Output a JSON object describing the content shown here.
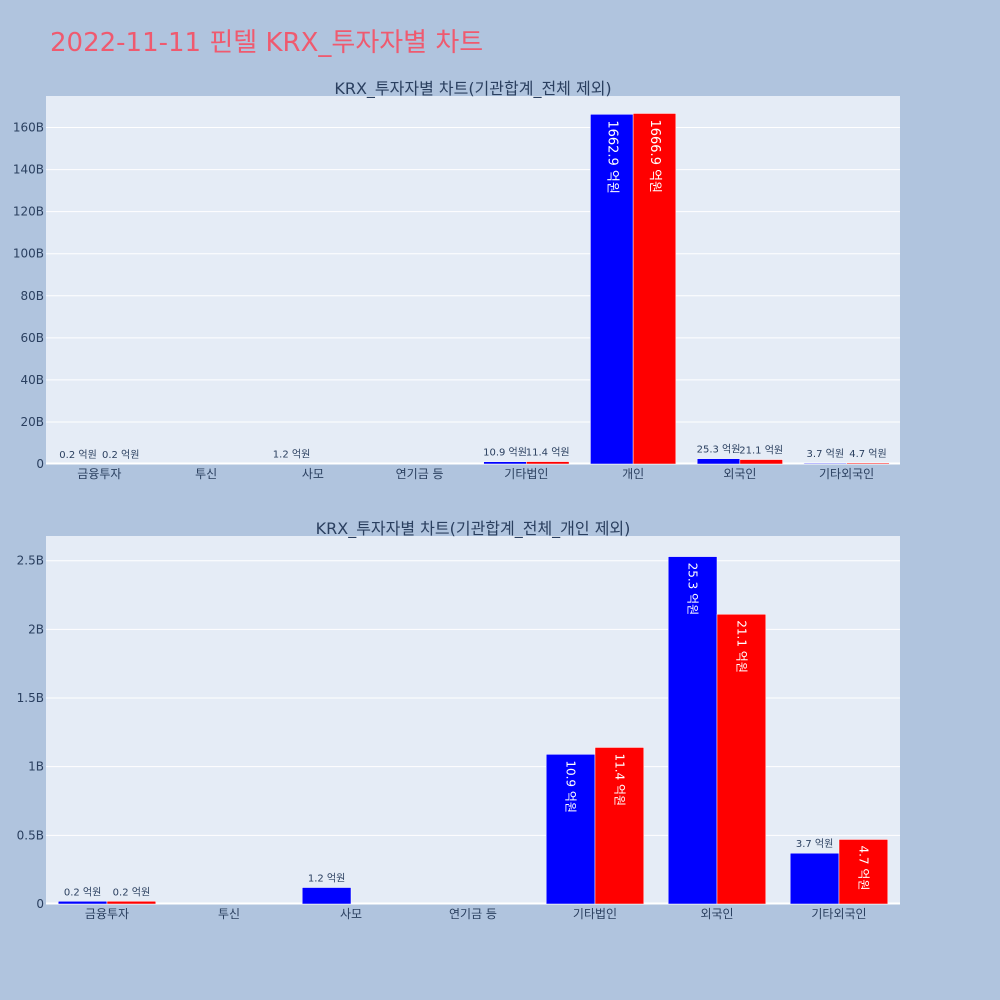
{
  "title": "2022-11-11 핀텔 KRX_투자자별 차트",
  "colors": {
    "series_a": "#0000ff",
    "series_b": "#ff0000",
    "plot_bg": "#e5ecf6",
    "page_bg": "#b0c4de",
    "title": "#ef5a6f"
  },
  "chart_data": [
    {
      "type": "bar",
      "title": "KRX_투자자별 차트(기관합계_전체 제외)",
      "categories": [
        "금융투자",
        "투신",
        "사모",
        "연기금 등",
        "기타법인",
        "개인",
        "외국인",
        "기타외국인"
      ],
      "series": [
        {
          "values": [
            20000000,
            0,
            120000000,
            0,
            1090000000,
            166290000000,
            2530000000,
            370000000
          ],
          "labels": [
            "0.2 억원",
            "",
            "1.2 억원",
            "",
            "10.9 억원",
            "1662.9 억원",
            "25.3 억원",
            "3.7 억원"
          ]
        },
        {
          "values": [
            20000000,
            0,
            0,
            0,
            1140000000,
            166690000000,
            2110000000,
            470000000
          ],
          "labels": [
            "0.2 억원",
            "",
            "",
            "",
            "11.4 억원",
            "1666.9 억원",
            "21.1 억원",
            "4.7 억원"
          ]
        }
      ],
      "yticks": [
        {
          "value": 0,
          "label": "0"
        },
        {
          "value": 20000000000,
          "label": "20B"
        },
        {
          "value": 40000000000,
          "label": "40B"
        },
        {
          "value": 60000000000,
          "label": "60B"
        },
        {
          "value": 80000000000,
          "label": "80B"
        },
        {
          "value": 100000000000,
          "label": "100B"
        },
        {
          "value": 120000000000,
          "label": "120B"
        },
        {
          "value": 140000000000,
          "label": "140B"
        },
        {
          "value": 160000000000,
          "label": "160B"
        }
      ],
      "ylim": [
        0,
        175000000000
      ],
      "grid": true
    },
    {
      "type": "bar",
      "title": "KRX_투자자별 차트(기관합계_전체_개인 제외)",
      "categories": [
        "금융투자",
        "투신",
        "사모",
        "연기금 등",
        "기타법인",
        "외국인",
        "기타외국인"
      ],
      "series": [
        {
          "values": [
            20000000,
            0,
            120000000,
            0,
            1090000000,
            2530000000,
            370000000
          ],
          "labels": [
            "0.2 억원",
            "",
            "1.2 억원",
            "",
            "10.9 억원",
            "25.3 억원",
            "3.7 억원"
          ]
        },
        {
          "values": [
            20000000,
            0,
            0,
            0,
            1140000000,
            2110000000,
            470000000
          ],
          "labels": [
            "0.2 억원",
            "",
            "",
            "",
            "11.4 억원",
            "21.1 억원",
            "4.7 억원"
          ]
        }
      ],
      "yticks": [
        {
          "value": 0,
          "label": "0"
        },
        {
          "value": 500000000,
          "label": "0.5B"
        },
        {
          "value": 1000000000,
          "label": "1B"
        },
        {
          "value": 1500000000,
          "label": "1.5B"
        },
        {
          "value": 2000000000,
          "label": "2B"
        },
        {
          "value": 2500000000,
          "label": "2.5B"
        }
      ],
      "ylim": [
        0,
        2680000000
      ],
      "grid": true
    }
  ]
}
